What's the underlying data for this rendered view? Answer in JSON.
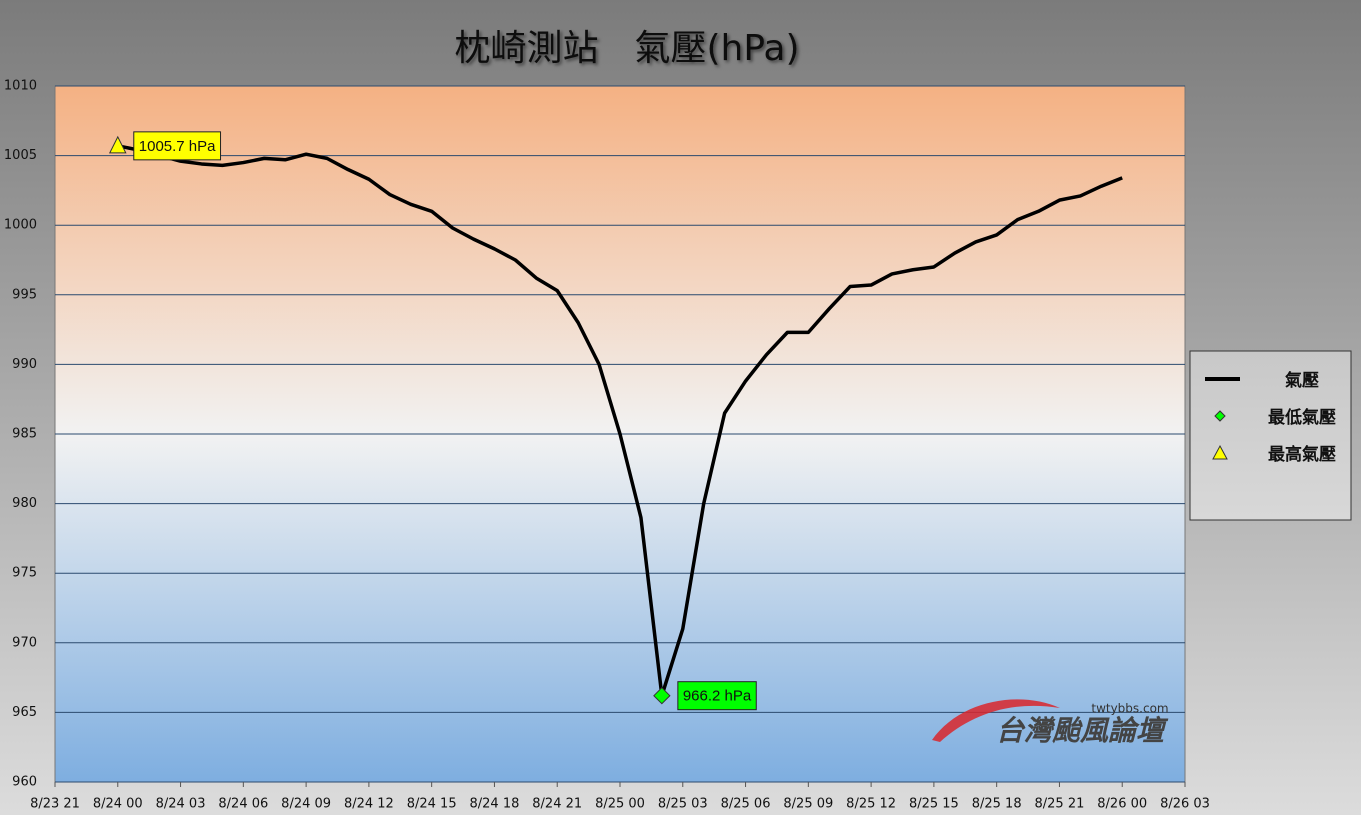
{
  "chart_data": {
    "type": "line",
    "title": "枕崎測站　氣壓(hPa)",
    "x": [
      "8/24 00",
      "8/24 01",
      "8/24 02",
      "8/24 03",
      "8/24 04",
      "8/24 05",
      "8/24 06",
      "8/24 07",
      "8/24 08",
      "8/24 09",
      "8/24 10",
      "8/24 11",
      "8/24 12",
      "8/24 13",
      "8/24 14",
      "8/24 15",
      "8/24 16",
      "8/24 17",
      "8/24 18",
      "8/24 19",
      "8/24 20",
      "8/24 21",
      "8/24 22",
      "8/24 23",
      "8/25 00",
      "8/25 01",
      "8/25 02",
      "8/25 03",
      "8/25 04",
      "8/25 05",
      "8/25 06",
      "8/25 07",
      "8/25 08",
      "8/25 09",
      "8/25 10",
      "8/25 11",
      "8/25 12",
      "8/25 13",
      "8/25 14",
      "8/25 15",
      "8/25 16",
      "8/25 17",
      "8/25 18",
      "8/25 19",
      "8/25 20",
      "8/25 21",
      "8/25 22",
      "8/25 23",
      "8/26 00"
    ],
    "xlim": [
      "8/23 21",
      "8/26 03"
    ],
    "xticks": [
      "8/23 21",
      "8/24 00",
      "8/24 03",
      "8/24 06",
      "8/24 09",
      "8/24 12",
      "8/24 15",
      "8/24 18",
      "8/24 21",
      "8/25 00",
      "8/25 03",
      "8/25 06",
      "8/25 09",
      "8/25 12",
      "8/25 15",
      "8/25 18",
      "8/25 21",
      "8/26 00",
      "8/26 03"
    ],
    "ylim": [
      960,
      1010
    ],
    "yticks": [
      960,
      965,
      970,
      975,
      980,
      985,
      990,
      995,
      1000,
      1005,
      1010
    ],
    "grid": true,
    "legend": "right",
    "series": [
      {
        "name": "氣壓",
        "color": "#000000",
        "values": [
          1005.7,
          1005.4,
          1005.0,
          1004.6,
          1004.4,
          1004.3,
          1004.5,
          1004.8,
          1004.7,
          1005.1,
          1004.8,
          1004.0,
          1003.3,
          1002.2,
          1001.5,
          1001.0,
          999.8,
          999.0,
          998.3,
          997.5,
          996.2,
          995.3,
          993.0,
          990.0,
          985.0,
          979.0,
          966.2,
          971.0,
          980.0,
          986.5,
          988.8,
          990.7,
          992.3,
          992.3,
          994.0,
          995.6,
          995.7,
          996.5,
          996.8,
          997.0,
          998.0,
          998.8,
          999.3,
          1000.4,
          1001.0,
          1001.8,
          1002.1,
          1002.8,
          1003.4
        ]
      },
      {
        "name": "最低氣壓",
        "color": "#00ff00",
        "marker": "diamond",
        "x": [
          "8/25 02"
        ],
        "values": [
          966.2
        ],
        "value_labels": [
          "966.2 hPa"
        ]
      },
      {
        "name": "最高氣壓",
        "color": "#ffff00",
        "marker": "triangle",
        "x": [
          "8/24 00"
        ],
        "values": [
          1005.7
        ],
        "value_labels": [
          "1005.7 hPa"
        ]
      }
    ],
    "watermark": {
      "site": "twtybbs.com",
      "name": "台灣颱風論壇"
    }
  }
}
